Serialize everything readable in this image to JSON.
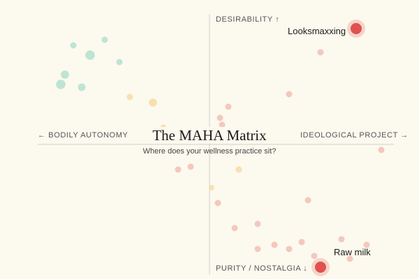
{
  "colors": {
    "background": "#fcf9ee",
    "axis": "#cfcfcf",
    "highlight": "#e0514f",
    "red_faint": "#f1b7ae",
    "green_faint": "#a9dcc9",
    "yellow_faint": "#f6d79b"
  },
  "chart_data": {
    "type": "scatter",
    "title": "The MAHA Matrix",
    "subtitle": "Where does your wellness practice sit?",
    "axes": {
      "top": "DESIRABILITY ↑",
      "bottom": "PURITY / NOSTALGIA ↓",
      "left": "← BODILY AUTONOMY",
      "right": "IDEOLOGICAL PROJECT →"
    },
    "xlim": [
      -1,
      1
    ],
    "ylim": [
      -1,
      1
    ],
    "grid": false,
    "points": [
      {
        "x": 0.7,
        "y": 0.83,
        "color": "red",
        "highlight": true,
        "label": "Looksmaxxing"
      },
      {
        "x": 0.53,
        "y": -0.88,
        "color": "red",
        "highlight": true,
        "label": "Raw milk"
      },
      {
        "x": 0.53,
        "y": 0.66,
        "color": "red"
      },
      {
        "x": 0.38,
        "y": 0.36,
        "color": "red"
      },
      {
        "x": 0.09,
        "y": 0.27,
        "color": "red"
      },
      {
        "x": 0.05,
        "y": 0.19,
        "color": "red"
      },
      {
        "x": 0.06,
        "y": 0.14,
        "color": "red"
      },
      {
        "x": 0.82,
        "y": -0.04,
        "color": "red"
      },
      {
        "x": -0.15,
        "y": -0.18,
        "color": "red"
      },
      {
        "x": -0.09,
        "y": -0.16,
        "color": "red"
      },
      {
        "x": 0.04,
        "y": -0.42,
        "color": "red"
      },
      {
        "x": 0.47,
        "y": -0.4,
        "color": "red"
      },
      {
        "x": 0.12,
        "y": -0.6,
        "color": "red"
      },
      {
        "x": 0.23,
        "y": -0.57,
        "color": "red"
      },
      {
        "x": 0.44,
        "y": -0.7,
        "color": "red"
      },
      {
        "x": 0.63,
        "y": -0.68,
        "color": "red"
      },
      {
        "x": 0.31,
        "y": -0.72,
        "color": "red"
      },
      {
        "x": 0.23,
        "y": -0.75,
        "color": "red"
      },
      {
        "x": 0.38,
        "y": -0.75,
        "color": "red"
      },
      {
        "x": 0.75,
        "y": -0.72,
        "color": "red"
      },
      {
        "x": 0.5,
        "y": -0.8,
        "color": "red"
      },
      {
        "x": 0.67,
        "y": -0.82,
        "color": "red"
      },
      {
        "x": -0.65,
        "y": 0.71,
        "color": "green"
      },
      {
        "x": -0.5,
        "y": 0.75,
        "color": "green"
      },
      {
        "x": -0.57,
        "y": 0.64,
        "color": "green",
        "size": 1.5
      },
      {
        "x": -0.43,
        "y": 0.59,
        "color": "green"
      },
      {
        "x": -0.69,
        "y": 0.5,
        "color": "green",
        "size": 1.3
      },
      {
        "x": -0.71,
        "y": 0.43,
        "color": "green",
        "size": 1.5
      },
      {
        "x": -0.61,
        "y": 0.41,
        "color": "green",
        "size": 1.2
      },
      {
        "x": -0.38,
        "y": 0.34,
        "color": "yellow"
      },
      {
        "x": -0.27,
        "y": 0.3,
        "color": "yellow",
        "size": 1.3
      },
      {
        "x": -0.22,
        "y": 0.12,
        "color": "yellow"
      },
      {
        "x": 0.14,
        "y": -0.18,
        "color": "yellow"
      },
      {
        "x": 0.01,
        "y": -0.31,
        "color": "yellow",
        "size": 0.85
      }
    ]
  }
}
